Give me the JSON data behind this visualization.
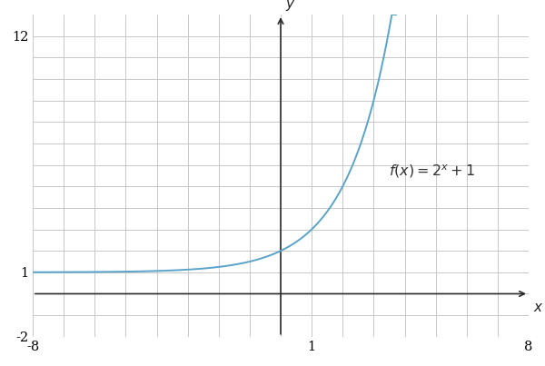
{
  "xlim": [
    -8,
    8
  ],
  "ylim": [
    -2,
    13
  ],
  "xticks": [
    -8,
    -7,
    -6,
    -5,
    -4,
    -3,
    -2,
    -1,
    0,
    1,
    2,
    3,
    4,
    5,
    6,
    7,
    8
  ],
  "yticks": [
    -2,
    -1,
    0,
    1,
    2,
    3,
    4,
    5,
    6,
    7,
    8,
    9,
    10,
    11,
    12
  ],
  "xtick_labels_show": [
    -8,
    1,
    8
  ],
  "ytick_labels_show": [
    -2,
    1,
    12
  ],
  "curve_color": "#5ba3c9",
  "curve_linewidth": 1.4,
  "background_color": "#ffffff",
  "grid_color": "#c8c8c8",
  "axis_color": "#2a2a2a",
  "label_fontsize": 10.5,
  "annotation_text": "$\\mathit{f}(x) = 2^x + 1$",
  "fig_width": 6.0,
  "fig_height": 4.03,
  "dpi": 100
}
